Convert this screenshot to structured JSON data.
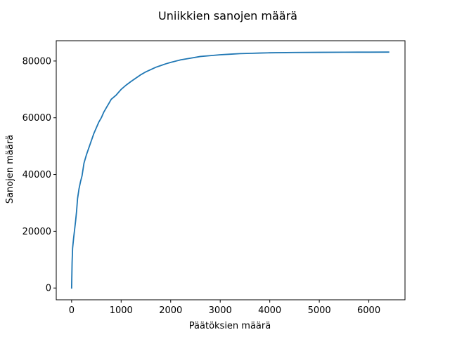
{
  "chart_data": {
    "type": "line",
    "title": "Uniikkien sanojen määrä",
    "xlabel": "Päätöksien määrä",
    "ylabel": "Sanojen määrä",
    "xlim": [
      -310,
      6730
    ],
    "ylim": [
      -4150,
      87150
    ],
    "x_ticks": [
      0,
      1000,
      2000,
      3000,
      4000,
      5000,
      6000
    ],
    "y_ticks": [
      0,
      20000,
      40000,
      60000,
      80000
    ],
    "x_tick_labels": [
      "0",
      "1000",
      "2000",
      "3000",
      "4000",
      "5000",
      "6000"
    ],
    "y_tick_labels": [
      "0",
      "20000",
      "40000",
      "60000",
      "80000"
    ],
    "grid": false,
    "series": [
      {
        "color": "#1f77b4",
        "x": [
          0,
          10,
          20,
          40,
          60,
          80,
          100,
          120,
          150,
          180,
          210,
          250,
          300,
          350,
          400,
          450,
          500,
          550,
          600,
          650,
          700,
          750,
          800,
          900,
          1000,
          1100,
          1200,
          1300,
          1400,
          1500,
          1600,
          1700,
          1800,
          1900,
          2000,
          2200,
          2400,
          2600,
          2800,
          3000,
          3200,
          3400,
          3600,
          3800,
          4000,
          4500,
          5000,
          5500,
          6000,
          6400
        ],
        "y": [
          0,
          9000,
          14000,
          17500,
          20500,
          23500,
          27000,
          31500,
          35000,
          37500,
          39500,
          44000,
          47000,
          49500,
          52000,
          54500,
          56500,
          58500,
          60000,
          62000,
          63500,
          65000,
          66500,
          68000,
          70000,
          71500,
          72800,
          74000,
          75200,
          76200,
          77000,
          77800,
          78400,
          79000,
          79500,
          80400,
          81000,
          81600,
          81900,
          82200,
          82400,
          82600,
          82700,
          82800,
          82900,
          83000,
          83050,
          83100,
          83120,
          83150
        ]
      }
    ]
  }
}
